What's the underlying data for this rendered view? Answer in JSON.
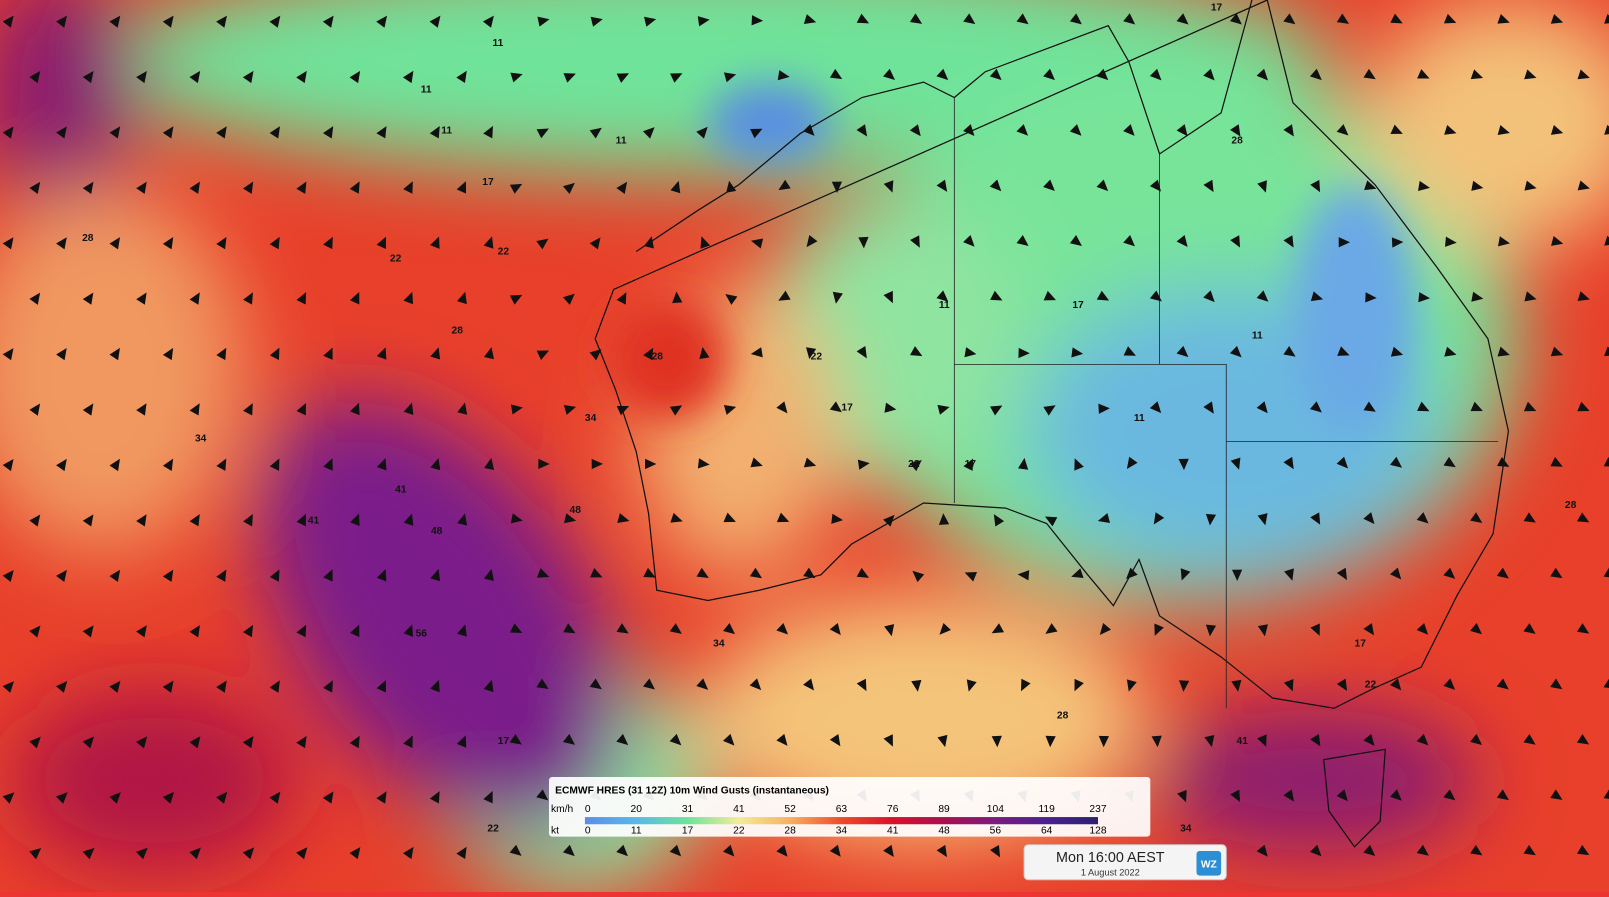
{
  "legend": {
    "title": "ECMWF HRES (31 12Z) 10m Wind Gusts (instantaneous)",
    "kmh_label": "km/h",
    "kt_label": "kt",
    "kmh_ticks": [
      0,
      20,
      31,
      41,
      52,
      63,
      76,
      89,
      104,
      119,
      237
    ],
    "kt_ticks": [
      0,
      11,
      17,
      22,
      28,
      34,
      41,
      48,
      56,
      64,
      128
    ]
  },
  "time": {
    "label": "Mon 16:00 AEST",
    "date": "1 August 2022",
    "logo": "WZ"
  },
  "contour_labels": [
    11,
    11,
    11,
    11,
    17,
    17,
    22,
    22,
    28,
    28,
    34,
    41,
    41,
    48,
    48,
    56,
    34,
    28,
    22,
    17,
    11,
    11,
    17,
    22,
    28,
    34,
    41,
    17,
    22,
    28,
    11,
    17,
    22,
    28,
    34,
    17
  ]
}
